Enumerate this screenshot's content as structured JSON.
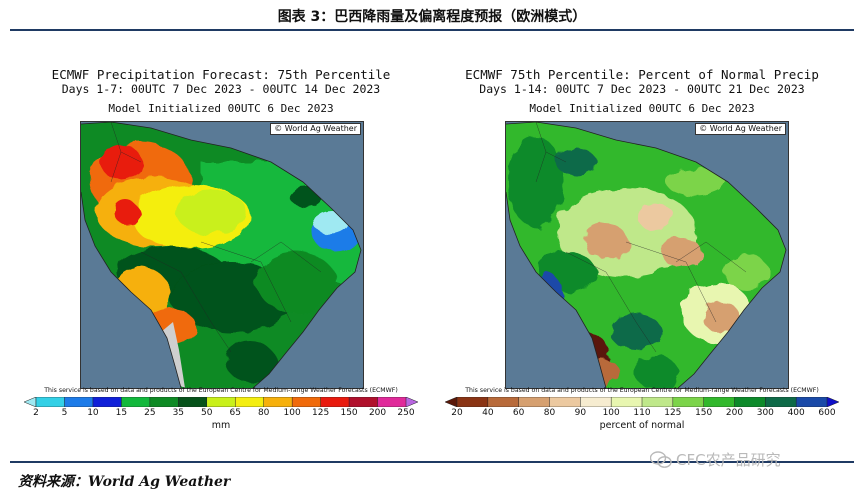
{
  "figure_title": "图表 3：巴西降雨量及偏离程度预报（欧洲模式）",
  "source": "资料来源：World Ag Weather",
  "watermark": "CFC农产品研究",
  "maps": [
    {
      "title_line1": "ECMWF Precipitation Forecast: 75th Percentile",
      "title_line2": "Days 1-7: 00UTC 7 Dec 2023 - 00UTC 14 Dec 2023",
      "title_line3": "Model Initialized 00UTC 6 Dec 2023",
      "credit": "© World Ag Weather",
      "disclaimer": "This service is based on data and products of the European Centre for Medium-range Weather Forecasts (ECMWF)",
      "legend_ticks": [
        "2",
        "5",
        "10",
        "15",
        "25",
        "35",
        "50",
        "65",
        "80",
        "100",
        "125",
        "150",
        "200",
        "250"
      ],
      "legend_colors": [
        "#9fe9f2",
        "#33d0e6",
        "#1d7be8",
        "#1020d8",
        "#12b83c",
        "#0e8a24",
        "#06521a",
        "#c9f01a",
        "#f4ee10",
        "#f6b00c",
        "#f06a0a",
        "#e81a0e",
        "#b0102c",
        "#e02a9a",
        "#b866e0"
      ],
      "legend_unit": "mm"
    },
    {
      "title_line1": "ECMWF 75th Percentile: Percent of Normal Precip",
      "title_line2": "Days 1-14: 00UTC 7 Dec 2023 - 00UTC 21 Dec 2023",
      "title_line3": "Model Initialized 00UTC 6 Dec 2023",
      "credit": "© World Ag Weather",
      "disclaimer": "This service is based on data and products of the European Centre for Medium-range Weather Forecasts (ECMWF)",
      "legend_ticks": [
        "20",
        "40",
        "60",
        "80",
        "90",
        "100",
        "110",
        "125",
        "150",
        "200",
        "300",
        "400",
        "600"
      ],
      "legend_colors": [
        "#5a1808",
        "#8a3414",
        "#b86a3a",
        "#d6a070",
        "#ecc9a0",
        "#f6ecd0",
        "#e8f6b0",
        "#bfe88a",
        "#7cd44a",
        "#32b82c",
        "#0d8a2a",
        "#0e6a48",
        "#1a4aa8",
        "#1010c8"
      ],
      "legend_unit": "percent of normal"
    }
  ]
}
